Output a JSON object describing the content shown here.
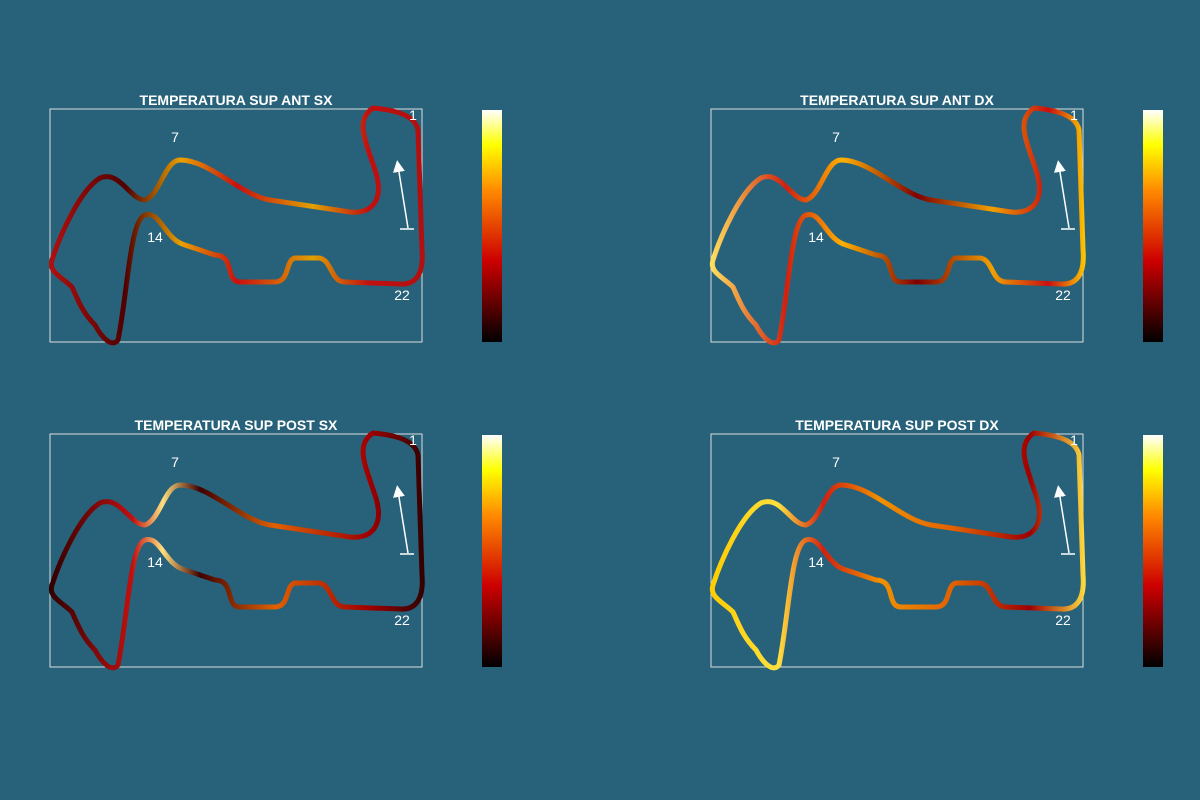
{
  "panels": [
    {
      "title": "TEMPERATURA SUP ANT SX",
      "turns": [
        "1",
        "7",
        "14",
        "22"
      ]
    },
    {
      "title": "TEMPERATURA SUP ANT DX",
      "turns": [
        "1",
        "7",
        "14",
        "22"
      ]
    },
    {
      "title": "TEMPERATURA SUP POST SX",
      "turns": [
        "1",
        "7",
        "14",
        "22"
      ]
    },
    {
      "title": "TEMPERATURA SUP POST DX",
      "turns": [
        "1",
        "7",
        "14",
        "22"
      ]
    }
  ]
}
